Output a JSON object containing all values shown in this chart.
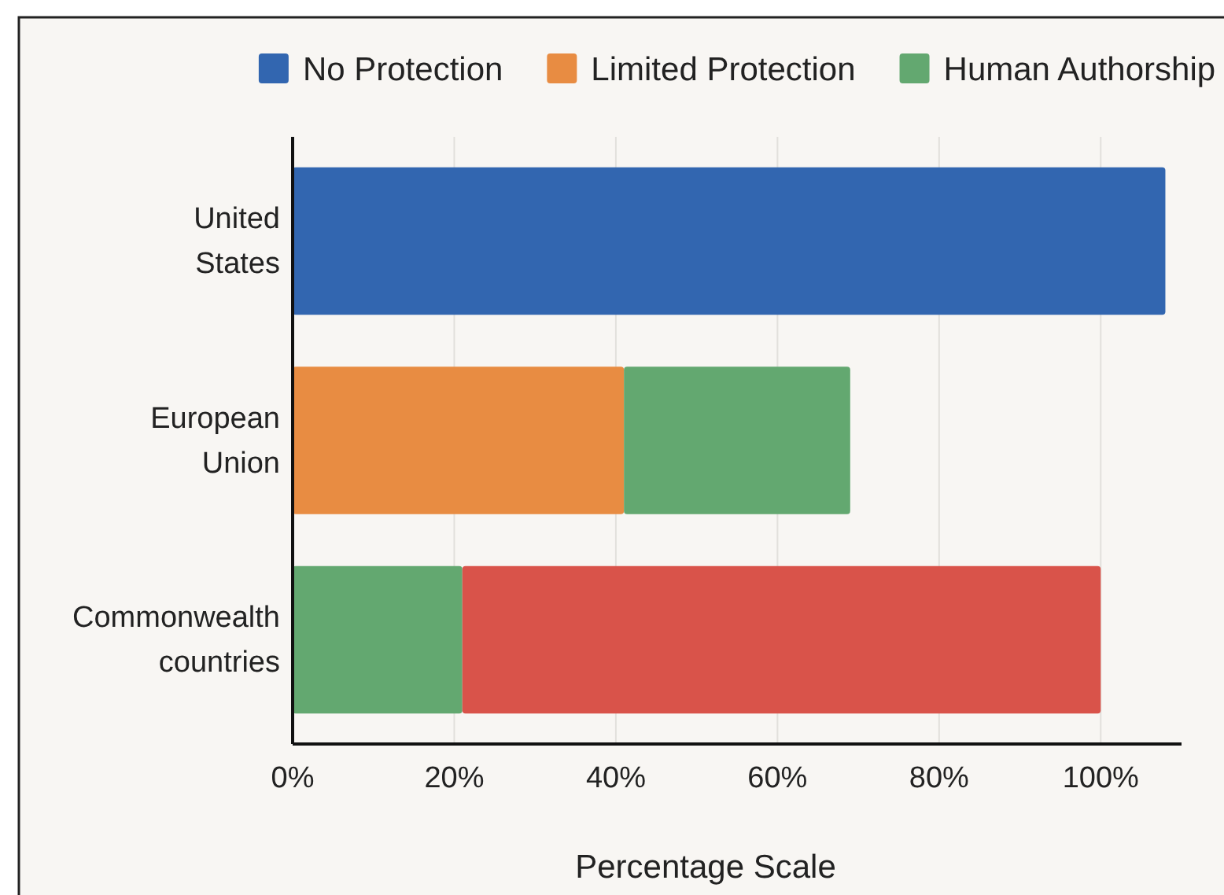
{
  "chart_data": {
    "type": "bar",
    "orientation": "horizontal",
    "stacked": true,
    "categories": [
      "United States",
      "European Union",
      "Commonwealth countries"
    ],
    "xlabel": "Percentage Scale",
    "xlim": [
      0,
      110
    ],
    "xticks": [
      {
        "value": 0,
        "label": "0%"
      },
      {
        "value": 20,
        "label": "20%"
      },
      {
        "value": 40,
        "label": "40%"
      },
      {
        "value": 60,
        "label": "60%"
      },
      {
        "value": 80,
        "label": "80%"
      },
      {
        "value": 100,
        "label": "100%"
      }
    ],
    "grid": "x",
    "legend": "top",
    "series": [
      {
        "name": "No Protection",
        "color": "#3266b0",
        "values": [
          108,
          null,
          null
        ]
      },
      {
        "name": "Limited Protection",
        "color": "#e88c42",
        "values": [
          null,
          41,
          null
        ]
      },
      {
        "name": "Human Authorship",
        "color": "#63a870",
        "values": [
          null,
          28,
          21
        ]
      },
      {
        "color": "#d9534a",
        "values": [
          null,
          null,
          79
        ]
      }
    ]
  }
}
